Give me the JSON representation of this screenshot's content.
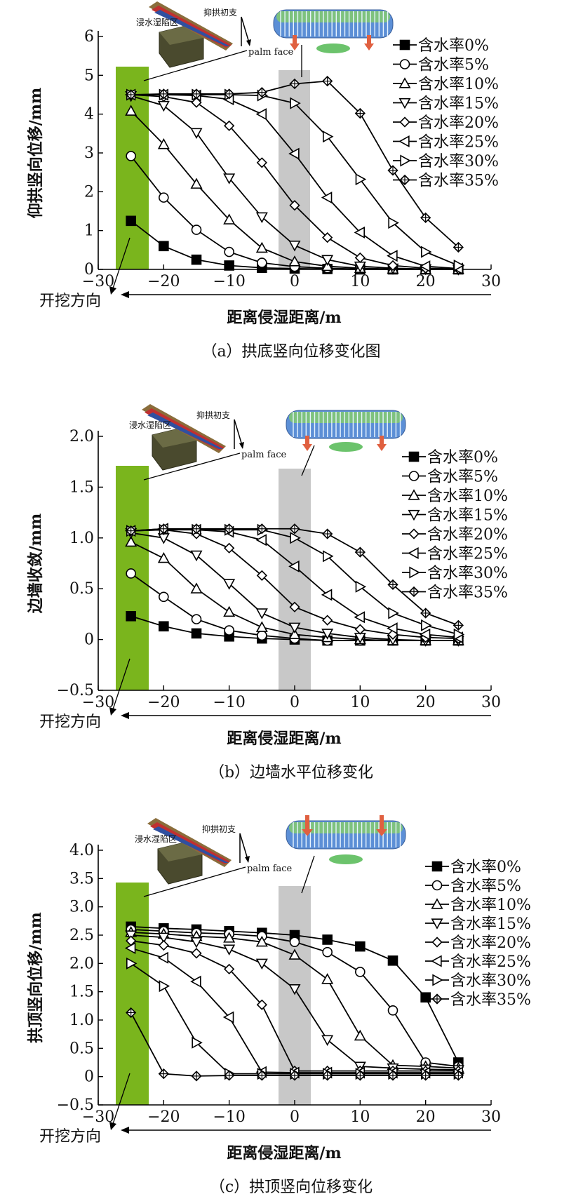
{
  "chart_data": [
    {
      "type": "line",
      "caption": "（a）拱底竖向位移变化图",
      "ylabel": "仰拱竖向位移/mm",
      "xlabel": "距离侵湿距离/m",
      "direction_label": "开挖方向",
      "palm_face_label": "palm face",
      "inset_labels": [
        "抑拱初支",
        "浸水湿陷区"
      ],
      "xlim": [
        -30,
        30
      ],
      "ylim": [
        0,
        6
      ],
      "xticks": [
        "−30",
        "−20",
        "−10",
        "0",
        "10",
        "20",
        "30"
      ],
      "yticks": [
        "0",
        "1",
        "2",
        "3",
        "4",
        "5",
        "6"
      ],
      "x": [
        -25,
        -20,
        -15,
        -10,
        -5,
        0,
        5,
        10,
        15,
        20,
        25
      ],
      "legend_position": "right",
      "series": [
        {
          "name": "含水率0%",
          "marker": "square",
          "values": [
            1.25,
            0.6,
            0.25,
            0.1,
            0.04,
            0.02,
            0.01,
            0.0,
            0.0,
            0.0,
            0.0
          ]
        },
        {
          "name": "含水率5%",
          "marker": "circle",
          "values": [
            2.92,
            1.85,
            1.02,
            0.45,
            0.17,
            0.07,
            0.03,
            0.01,
            0.0,
            0.0,
            0.0
          ]
        },
        {
          "name": "含水率10%",
          "marker": "triangle-up",
          "values": [
            4.08,
            3.22,
            2.2,
            1.28,
            0.55,
            0.2,
            0.08,
            0.03,
            0.01,
            0.0,
            0.0
          ]
        },
        {
          "name": "含水率15%",
          "marker": "triangle-down",
          "values": [
            4.47,
            4.22,
            3.52,
            2.35,
            1.35,
            0.62,
            0.25,
            0.08,
            0.03,
            0.01,
            0.0
          ]
        },
        {
          "name": "含水率20%",
          "marker": "diamond",
          "values": [
            4.5,
            4.45,
            4.3,
            3.7,
            2.75,
            1.65,
            0.82,
            0.3,
            0.1,
            0.03,
            0.01
          ]
        },
        {
          "name": "含水率25%",
          "marker": "triangle-left",
          "values": [
            4.5,
            4.5,
            4.48,
            4.38,
            4.0,
            2.98,
            1.85,
            0.95,
            0.35,
            0.08,
            0.02
          ]
        },
        {
          "name": "含水率30%",
          "marker": "triangle-right",
          "values": [
            4.5,
            4.5,
            4.5,
            4.5,
            4.48,
            4.28,
            3.42,
            2.32,
            1.2,
            0.45,
            0.1
          ]
        },
        {
          "name": "含水率35%",
          "marker": "diamond-cross",
          "values": [
            4.5,
            4.52,
            4.52,
            4.52,
            4.56,
            4.78,
            4.85,
            4.02,
            2.55,
            1.33,
            0.57
          ]
        }
      ]
    },
    {
      "type": "line",
      "caption": "（b）边墙水平位移变化",
      "ylabel": "边墙收敛/mm",
      "xlabel": "距离侵湿距离/m",
      "direction_label": "开挖方向",
      "palm_face_label": "palm face",
      "inset_labels": [
        "抑拱初支",
        "浸水湿陷区"
      ],
      "xlim": [
        -30,
        30
      ],
      "ylim": [
        -0.5,
        2.0
      ],
      "xticks": [
        "−30",
        "−20",
        "−10",
        "0",
        "10",
        "20",
        "30"
      ],
      "yticks": [
        "−0.5",
        "0",
        "0.5",
        "1.0",
        "1.5",
        "2.0"
      ],
      "x": [
        -25,
        -20,
        -15,
        -10,
        -5,
        0,
        5,
        10,
        15,
        20,
        25
      ],
      "legend_position": "right",
      "series": [
        {
          "name": "含水率0%",
          "marker": "square",
          "values": [
            0.23,
            0.13,
            0.06,
            0.03,
            0.01,
            0.0,
            -0.01,
            -0.01,
            -0.01,
            -0.01,
            -0.01
          ]
        },
        {
          "name": "含水率5%",
          "marker": "circle",
          "values": [
            0.65,
            0.42,
            0.2,
            0.09,
            0.04,
            0.01,
            -0.01,
            -0.01,
            -0.01,
            -0.01,
            -0.01
          ]
        },
        {
          "name": "含水率10%",
          "marker": "triangle-up",
          "values": [
            0.96,
            0.8,
            0.5,
            0.27,
            0.12,
            0.05,
            0.02,
            0.0,
            -0.01,
            -0.01,
            -0.01
          ]
        },
        {
          "name": "含水率15%",
          "marker": "triangle-down",
          "values": [
            1.05,
            1.0,
            0.83,
            0.55,
            0.26,
            0.12,
            0.06,
            0.02,
            0.0,
            -0.01,
            -0.01
          ]
        },
        {
          "name": "含水率20%",
          "marker": "diamond",
          "values": [
            1.07,
            1.08,
            1.04,
            0.9,
            0.63,
            0.32,
            0.19,
            0.1,
            0.05,
            0.02,
            0.01
          ]
        },
        {
          "name": "含水率25%",
          "marker": "triangle-left",
          "values": [
            1.07,
            1.09,
            1.08,
            1.06,
            0.98,
            0.72,
            0.44,
            0.22,
            0.11,
            0.05,
            0.02
          ]
        },
        {
          "name": "含水率30%",
          "marker": "triangle-right",
          "values": [
            1.07,
            1.08,
            1.08,
            1.08,
            1.08,
            1.0,
            0.82,
            0.52,
            0.26,
            0.14,
            0.05
          ]
        },
        {
          "name": "含水率35%",
          "marker": "diamond-cross",
          "values": [
            1.07,
            1.09,
            1.09,
            1.09,
            1.09,
            1.09,
            1.04,
            0.86,
            0.54,
            0.26,
            0.14
          ]
        }
      ]
    },
    {
      "type": "line",
      "caption": "（c）拱顶竖向位移变化",
      "ylabel": "拱顶竖向位移/mm",
      "xlabel": "距离侵湿距离/m",
      "direction_label": "开挖方向",
      "palm_face_label": "palm face",
      "inset_labels": [
        "抑拱初支",
        "浸水湿陷区"
      ],
      "xlim": [
        -30,
        30
      ],
      "ylim": [
        -0.5,
        4.0
      ],
      "xticks": [
        "−30",
        "−20",
        "−10",
        "0",
        "10",
        "20",
        "30"
      ],
      "yticks": [
        "−0.5",
        "0",
        "0.5",
        "1.0",
        "1.5",
        "2.0",
        "2.5",
        "3.0",
        "3.5",
        "4.0"
      ],
      "x": [
        -25,
        -20,
        -15,
        -10,
        -5,
        0,
        5,
        10,
        15,
        20,
        25
      ],
      "legend_position": "right",
      "series": [
        {
          "name": "含水率0%",
          "marker": "square",
          "values": [
            2.65,
            2.62,
            2.6,
            2.57,
            2.54,
            2.5,
            2.42,
            2.3,
            2.05,
            1.4,
            0.25
          ]
        },
        {
          "name": "含水率5%",
          "marker": "circle",
          "values": [
            2.6,
            2.57,
            2.54,
            2.52,
            2.48,
            2.38,
            2.2,
            1.85,
            1.17,
            0.25,
            0.18
          ]
        },
        {
          "name": "含水率10%",
          "marker": "triangle-up",
          "values": [
            2.55,
            2.52,
            2.48,
            2.45,
            2.38,
            2.15,
            1.72,
            0.72,
            0.2,
            0.18,
            0.15
          ]
        },
        {
          "name": "含水率15%",
          "marker": "triangle-down",
          "values": [
            2.5,
            2.46,
            2.38,
            2.25,
            2.0,
            1.55,
            0.65,
            0.18,
            0.15,
            0.13,
            0.12
          ]
        },
        {
          "name": "含水率20%",
          "marker": "diamond",
          "values": [
            2.4,
            2.32,
            2.18,
            1.9,
            1.27,
            0.1,
            0.1,
            0.1,
            0.1,
            0.1,
            0.1
          ]
        },
        {
          "name": "含水率25%",
          "marker": "triangle-left",
          "values": [
            2.27,
            2.1,
            1.68,
            1.05,
            0.08,
            0.07,
            0.07,
            0.07,
            0.07,
            0.07,
            0.07
          ]
        },
        {
          "name": "含水率30%",
          "marker": "triangle-right",
          "values": [
            2.0,
            1.6,
            0.6,
            0.05,
            0.05,
            0.05,
            0.05,
            0.05,
            0.05,
            0.05,
            0.05
          ]
        },
        {
          "name": "含水率35%",
          "marker": "diamond-cross",
          "values": [
            1.13,
            0.05,
            0.01,
            0.02,
            0.02,
            0.02,
            0.02,
            0.02,
            0.02,
            0.02,
            0.02
          ]
        }
      ]
    }
  ]
}
